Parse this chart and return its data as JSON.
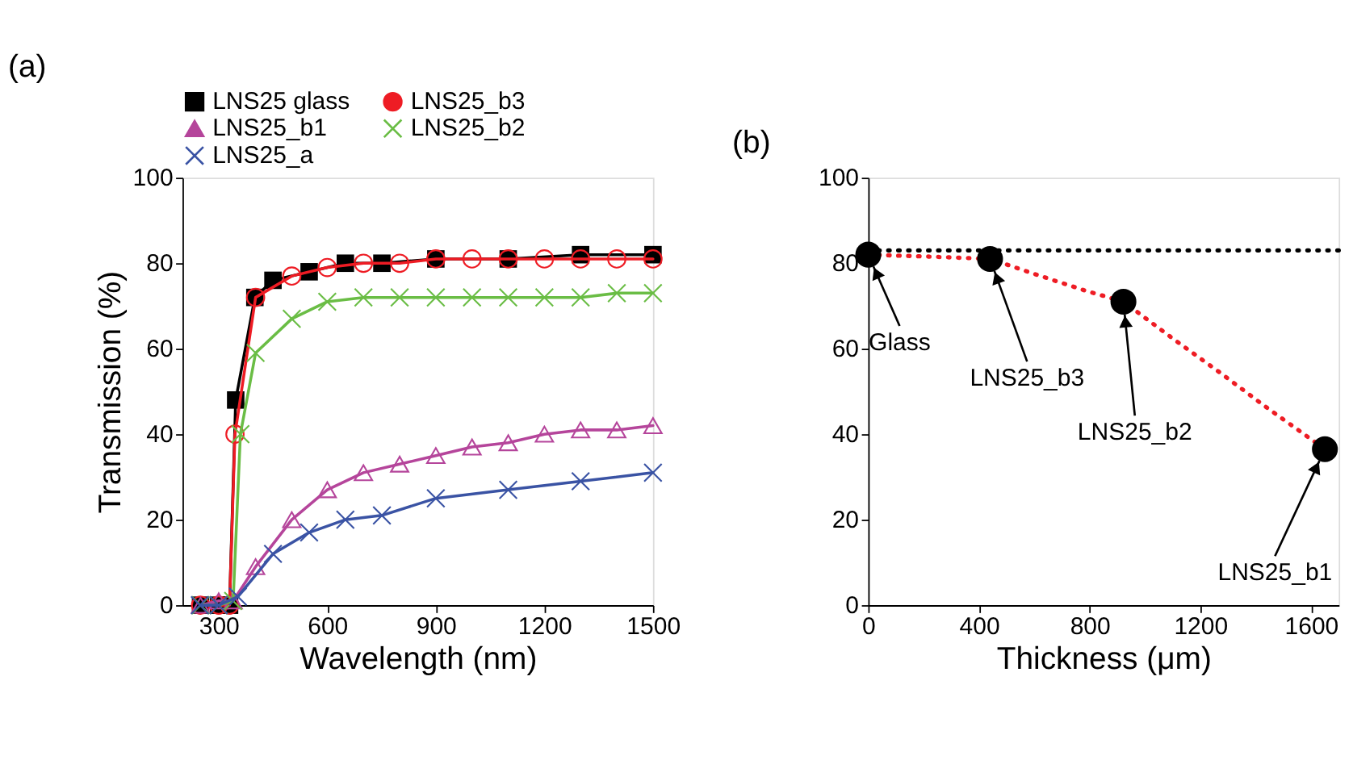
{
  "chart_data": [
    {
      "type": "line",
      "title": "(a)",
      "xlabel": "Wavelength (nm)",
      "ylabel": "Transmission (%)",
      "xlim": [
        200,
        1500
      ],
      "xticks": [
        300,
        600,
        900,
        1200,
        1500
      ],
      "ylim": [
        0,
        100
      ],
      "yticks": [
        0,
        20,
        40,
        60,
        80,
        100
      ],
      "grid": false,
      "legend": "top",
      "series": [
        {
          "name": "LNS25 glass",
          "color": "#000000",
          "marker": "square",
          "x": [
            250,
            300,
            330,
            347,
            400,
            450,
            550,
            650,
            751,
            900,
            1100,
            1300,
            1500
          ],
          "values": [
            0,
            0,
            0,
            48,
            72,
            76,
            78,
            80,
            80,
            81,
            81,
            82,
            82
          ]
        },
        {
          "name": "LNS25_b3",
          "color": "#ee1c24",
          "marker": "circle",
          "x": [
            250,
            300,
            330,
            345,
            402,
            502,
            600,
            700,
            800,
            900,
            1000,
            1100,
            1200,
            1300,
            1400,
            1500
          ],
          "values": [
            0,
            0,
            0,
            40,
            72,
            77,
            79,
            80,
            80,
            81,
            81,
            81,
            81,
            81,
            81,
            81
          ]
        },
        {
          "name": "LNS25_b1",
          "color": "#b5459b",
          "marker": "triangle",
          "x": [
            250,
            300,
            340,
            402,
            502,
            600,
            700,
            800,
            900,
            1000,
            1100,
            1200,
            1300,
            1400,
            1500
          ],
          "values": [
            0,
            1,
            1,
            9,
            20,
            27,
            31,
            33,
            35,
            37,
            38,
            40,
            41,
            41,
            42
          ]
        },
        {
          "name": "LNS25_b2",
          "color": "#6abd45",
          "marker": "cross",
          "x": [
            250,
            300,
            340,
            360,
            402,
            502,
            600,
            700,
            800,
            900,
            1000,
            1100,
            1200,
            1300,
            1400,
            1500
          ],
          "values": [
            0,
            0,
            1,
            40,
            59,
            67,
            71,
            72,
            72,
            72,
            72,
            72,
            72,
            72,
            73,
            73
          ]
        },
        {
          "name": "LNS25_a",
          "color": "#3a53a4",
          "marker": "cross",
          "x": [
            248,
            300,
            353,
            450,
            550,
            650,
            751,
            900,
            1100,
            1300,
            1500
          ],
          "values": [
            0,
            0,
            2,
            12,
            17,
            20,
            21,
            25,
            27,
            29,
            31
          ]
        }
      ]
    },
    {
      "type": "scatter",
      "title": "(b)",
      "xlabel": "Thickness (μm)",
      "xlim": [
        0,
        1700
      ],
      "xticks": [
        0,
        400,
        800,
        1200,
        1600
      ],
      "ylim": [
        0,
        100
      ],
      "yticks": [
        0,
        20,
        40,
        60,
        80,
        100
      ],
      "grid": false,
      "legend": false,
      "ref_lines": [
        {
          "axis": "y",
          "value": 83,
          "color": "#000000",
          "line_style": "dotted"
        }
      ],
      "series": [
        {
          "type": "line",
          "color": "#ee1c24",
          "line_style": "dotted",
          "marker": "none",
          "x": [
            0,
            200,
            440,
            609,
            779,
            922,
            1100,
            1269,
            1430,
            1650
          ],
          "values": [
            82,
            81.6,
            81,
            77.3,
            73.7,
            71,
            62.4,
            54.5,
            46.7,
            36.5
          ]
        },
        {
          "type": "scatter",
          "color": "#000000",
          "marker": "circle",
          "x": [
            0,
            440,
            922,
            1650
          ],
          "values": [
            82,
            81,
            71,
            36.5
          ]
        }
      ],
      "annotations": [
        {
          "text": "Glass",
          "x": 0,
          "y": 82
        },
        {
          "text": "LNS25_b3",
          "x": 440,
          "y": 81
        },
        {
          "text": "LNS25_b2",
          "x": 922,
          "y": 71
        },
        {
          "text": "LNS25_b1",
          "x": 1650,
          "y": 36.5
        }
      ]
    }
  ]
}
